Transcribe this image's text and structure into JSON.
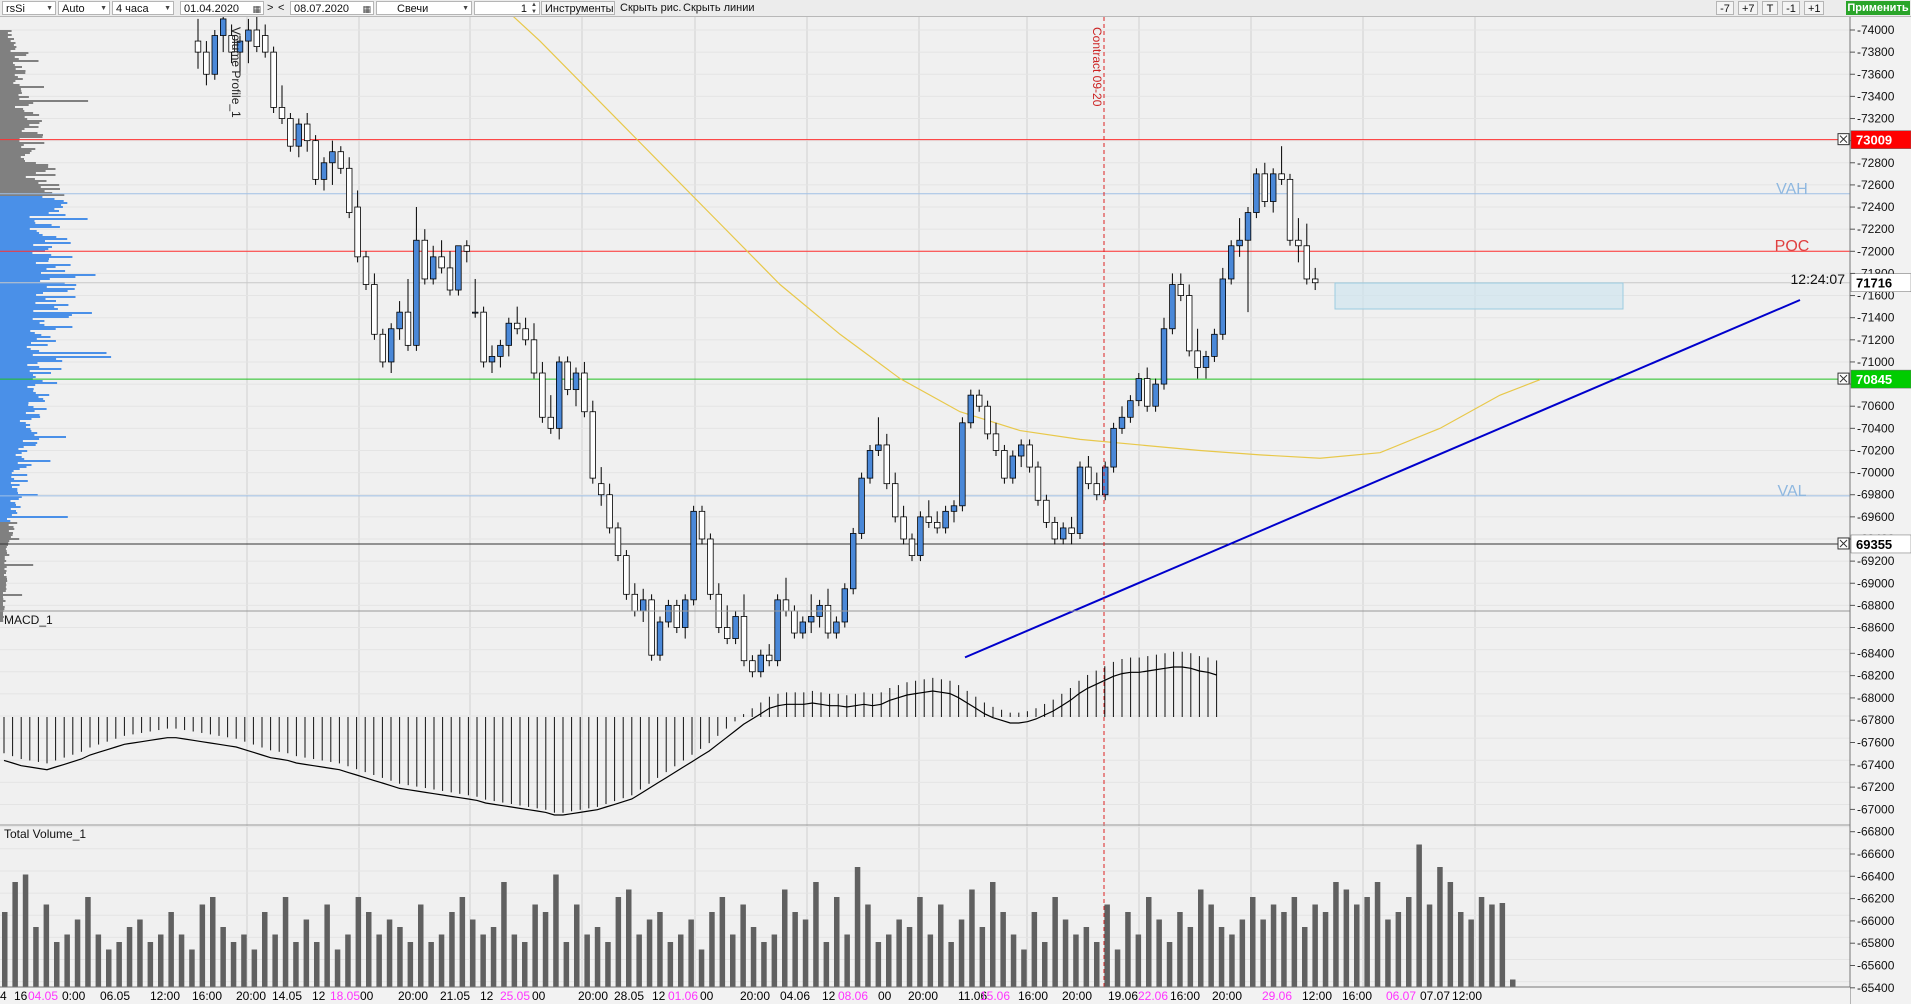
{
  "toolbar": {
    "symbol": "rsSi",
    "scale_mode": "Auto",
    "timeframe": "4 часа",
    "date_from": "01.04.2020",
    "nav_next": ">",
    "nav_prev": "<",
    "date_to": "08.07.2020",
    "chart_type": "Свечи",
    "count": "1",
    "instruments": "Инструменты",
    "hide_drawings": "Скрыть рис.",
    "hide_lines": "Скрыть линии",
    "btn_minus7": "-7",
    "btn_plus7": "+7",
    "btn_t": "T",
    "btn_minus1": "-1",
    "btn_plus1": "+1",
    "apply": "Применить"
  },
  "panels": {
    "price_label_vp": "Volume Profile_1",
    "contract_label": "Contract 09-20",
    "macd": "MACD_1",
    "volume": "Total Volume_1"
  },
  "levels": {
    "vah": "VAH",
    "poc": "POC",
    "val": "VAL",
    "timer": "12:24:07"
  },
  "badges": [
    {
      "text": "73009",
      "color": "#ff0000",
      "price": 73009
    },
    {
      "text": "71716",
      "color": "#ffffff",
      "price": 71716
    },
    {
      "text": "70845",
      "color": "#00cc00",
      "price": 70845
    },
    {
      "text": "69355",
      "color": "#ffffff",
      "price": 69355
    }
  ],
  "price_axis": [
    "-74000",
    "-73800",
    "-73600",
    "-73400",
    "-73200",
    "-73000",
    "-72800",
    "-72600",
    "-72400",
    "-72200",
    "-72000",
    "-71800",
    "-71600",
    "-71400",
    "-71200",
    "-71000",
    "-70800",
    "-70600",
    "-70400",
    "-70200",
    "-70000",
    "-69800",
    "-69600",
    "-69400",
    "-69200",
    "-69000",
    "-68800",
    "-68600",
    "-68400",
    "-68200",
    "-68000",
    "-67800",
    "-67600",
    "-67400",
    "-67200",
    "-67000",
    "-66800",
    "-66600",
    "-66400",
    "-66200",
    "-66000",
    "-65800",
    "-65600",
    "-65400"
  ],
  "time_axis": [
    {
      "text": "4",
      "color": "#000000"
    },
    {
      "text": "16",
      "color": "#000000"
    },
    {
      "text": "04.05",
      "color": "#ff33ff"
    },
    {
      "text": "0:00",
      "color": "#000000"
    },
    {
      "text": "06.05",
      "color": "#000000"
    },
    {
      "text": "12:00",
      "color": "#000000"
    },
    {
      "text": "16:00",
      "color": "#000000"
    },
    {
      "text": "20:00",
      "color": "#000000"
    },
    {
      "text": "14.05",
      "color": "#000000"
    },
    {
      "text": "12",
      "color": "#000000"
    },
    {
      "text": "18.05",
      "color": "#ff33ff"
    },
    {
      "text": "00",
      "color": "#000000"
    },
    {
      "text": "20:00",
      "color": "#000000"
    },
    {
      "text": "21.05",
      "color": "#000000"
    },
    {
      "text": "12",
      "color": "#000000"
    },
    {
      "text": "25.05",
      "color": "#ff33ff"
    },
    {
      "text": "00",
      "color": "#000000"
    },
    {
      "text": "20:00",
      "color": "#000000"
    },
    {
      "text": "28.05",
      "color": "#000000"
    },
    {
      "text": "12",
      "color": "#000000"
    },
    {
      "text": "01.06",
      "color": "#ff33ff"
    },
    {
      "text": "00",
      "color": "#000000"
    },
    {
      "text": "20:00",
      "color": "#000000"
    },
    {
      "text": "04.06",
      "color": "#000000"
    },
    {
      "text": "12",
      "color": "#000000"
    },
    {
      "text": "08.06",
      "color": "#ff33ff"
    },
    {
      "text": "00",
      "color": "#000000"
    },
    {
      "text": "20:00",
      "color": "#000000"
    },
    {
      "text": "11.06",
      "color": "#000000"
    },
    {
      "text": "15.06",
      "color": "#ff33ff"
    },
    {
      "text": "16:00",
      "color": "#000000"
    },
    {
      "text": "20:00",
      "color": "#000000"
    },
    {
      "text": "19.06",
      "color": "#000000"
    },
    {
      "text": "22.06",
      "color": "#ff33ff"
    },
    {
      "text": "16:00",
      "color": "#000000"
    },
    {
      "text": "20:00",
      "color": "#000000"
    },
    {
      "text": "29.06",
      "color": "#ff33ff"
    },
    {
      "text": "12:00",
      "color": "#000000"
    },
    {
      "text": "16:00",
      "color": "#000000"
    },
    {
      "text": "06.07",
      "color": "#ff33ff"
    },
    {
      "text": "07.07",
      "color": "#000000"
    },
    {
      "text": "12:00",
      "color": "#000000"
    }
  ],
  "colors": {
    "bull_fill": "#4a88d8",
    "bear_fill": "#ffffff",
    "ma_line": "#e8c84a",
    "trend_line": "#0000cc",
    "profile_value_area": "#4a90e8",
    "profile_outside": "#808080",
    "volume_bar": "#606060",
    "grid": "#d0d0d0"
  },
  "chart_data": {
    "type": "candlestick",
    "instrument": "rsSi",
    "timeframe": "4 часа",
    "ylim": [
      65400,
      74100
    ],
    "levels": {
      "vah": 72520,
      "poc": 72000,
      "val": 69790,
      "red_line": 73009,
      "green_line": 70845,
      "dark_line": 69355
    },
    "candles": [
      [
        73900,
        74100,
        73650,
        73800
      ],
      [
        73800,
        73900,
        73500,
        73600
      ],
      [
        73600,
        74000,
        73550,
        73950
      ],
      [
        73950,
        74200,
        73800,
        74100
      ],
      [
        73950,
        74050,
        73700,
        73800
      ],
      [
        73800,
        73950,
        73600,
        73900
      ],
      [
        73900,
        74100,
        73700,
        74000
      ],
      [
        74000,
        74150,
        73800,
        73850
      ],
      [
        73950,
        74050,
        73750,
        73800
      ],
      [
        73800,
        73850,
        73250,
        73300
      ],
      [
        73300,
        73500,
        73150,
        73200
      ],
      [
        73200,
        73250,
        72900,
        72950
      ],
      [
        72950,
        73200,
        72850,
        73150
      ],
      [
        73150,
        73250,
        72900,
        73000
      ],
      [
        73000,
        73050,
        72600,
        72650
      ],
      [
        72650,
        72850,
        72550,
        72800
      ],
      [
        72800,
        73000,
        72600,
        72900
      ],
      [
        72900,
        72950,
        72700,
        72750
      ],
      [
        72750,
        72850,
        72300,
        72350
      ],
      [
        72400,
        72550,
        71900,
        71950
      ],
      [
        71950,
        72000,
        71650,
        71700
      ],
      [
        71700,
        71800,
        71200,
        71250
      ],
      [
        71250,
        71300,
        70950,
        71000
      ],
      [
        71000,
        71350,
        70900,
        71300
      ],
      [
        71300,
        71550,
        71200,
        71450
      ],
      [
        71450,
        71750,
        71100,
        71150
      ],
      [
        71150,
        72400,
        71100,
        72100
      ],
      [
        72100,
        72200,
        71700,
        71750
      ],
      [
        71750,
        72050,
        71700,
        71950
      ],
      [
        71950,
        72100,
        71800,
        71850
      ],
      [
        71850,
        72000,
        71600,
        71650
      ],
      [
        71650,
        72050,
        71600,
        72050
      ],
      [
        72050,
        72100,
        71900,
        72000
      ],
      [
        71450,
        71750,
        71400,
        71450
      ],
      [
        71450,
        71500,
        70950,
        71000
      ],
      [
        71000,
        71150,
        70900,
        71050
      ],
      [
        71050,
        71200,
        70950,
        71150
      ],
      [
        71150,
        71400,
        71050,
        71350
      ],
      [
        71350,
        71500,
        71250,
        71300
      ],
      [
        71300,
        71400,
        71150,
        71200
      ],
      [
        71200,
        71350,
        70850,
        70900
      ],
      [
        70900,
        71000,
        70450,
        70500
      ],
      [
        70500,
        70700,
        70350,
        70400
      ],
      [
        70400,
        71050,
        70300,
        71000
      ],
      [
        71000,
        71050,
        70700,
        70750
      ],
      [
        70750,
        70950,
        70600,
        70900
      ],
      [
        70900,
        71000,
        70500,
        70550
      ],
      [
        70550,
        70650,
        69900,
        69950
      ],
      [
        69900,
        70050,
        69700,
        69800
      ],
      [
        69800,
        69900,
        69450,
        69500
      ],
      [
        69500,
        69550,
        69200,
        69250
      ],
      [
        69250,
        69300,
        68850,
        68900
      ],
      [
        68900,
        69000,
        68700,
        68750
      ],
      [
        68750,
        68950,
        68650,
        68850
      ],
      [
        68850,
        68900,
        68300,
        68350
      ],
      [
        68350,
        68700,
        68300,
        68650
      ],
      [
        68650,
        68850,
        68600,
        68800
      ],
      [
        68800,
        68850,
        68550,
        68600
      ],
      [
        68600,
        68900,
        68500,
        68850
      ],
      [
        68850,
        69700,
        68800,
        69650
      ],
      [
        69650,
        69700,
        69350,
        69400
      ],
      [
        69400,
        69450,
        68850,
        68900
      ],
      [
        68900,
        69000,
        68550,
        68600
      ],
      [
        68600,
        68800,
        68450,
        68500
      ],
      [
        68500,
        68750,
        68450,
        68700
      ],
      [
        68700,
        68900,
        68250,
        68300
      ],
      [
        68300,
        68350,
        68150,
        68200
      ],
      [
        68200,
        68400,
        68150,
        68350
      ],
      [
        68350,
        68450,
        68250,
        68300
      ],
      [
        68300,
        68900,
        68250,
        68850
      ],
      [
        68850,
        69050,
        68700,
        68750
      ],
      [
        68750,
        68800,
        68500,
        68550
      ],
      [
        68550,
        68700,
        68500,
        68650
      ],
      [
        68650,
        68900,
        68550,
        68700
      ],
      [
        68700,
        68850,
        68600,
        68800
      ],
      [
        68800,
        68950,
        68500,
        68550
      ],
      [
        68550,
        68700,
        68500,
        68650
      ],
      [
        68650,
        69000,
        68600,
        68950
      ],
      [
        68950,
        69500,
        68900,
        69450
      ],
      [
        69450,
        70000,
        69400,
        69950
      ],
      [
        69950,
        70250,
        69900,
        70200
      ],
      [
        70200,
        70500,
        70150,
        70250
      ],
      [
        70250,
        70350,
        69850,
        69900
      ],
      [
        69900,
        70000,
        69550,
        69600
      ],
      [
        69600,
        69700,
        69350,
        69400
      ],
      [
        69400,
        69450,
        69200,
        69250
      ],
      [
        69250,
        69650,
        69200,
        69600
      ],
      [
        69600,
        69750,
        69500,
        69550
      ],
      [
        69550,
        69650,
        69450,
        69500
      ],
      [
        69500,
        69700,
        69450,
        69650
      ],
      [
        69650,
        69750,
        69550,
        69700
      ],
      [
        69700,
        70500,
        69650,
        70450
      ],
      [
        70450,
        70750,
        70400,
        70700
      ],
      [
        70700,
        70750,
        70550,
        70600
      ],
      [
        70600,
        70650,
        70300,
        70350
      ],
      [
        70350,
        70450,
        70150,
        70200
      ],
      [
        70200,
        70250,
        69900,
        69950
      ],
      [
        69950,
        70200,
        69900,
        70150
      ],
      [
        70150,
        70300,
        70050,
        70250
      ],
      [
        70250,
        70300,
        70000,
        70050
      ],
      [
        70050,
        70100,
        69700,
        69750
      ],
      [
        69750,
        69800,
        69500,
        69550
      ],
      [
        69550,
        69600,
        69350,
        69400
      ],
      [
        69400,
        69550,
        69350,
        69500
      ],
      [
        69500,
        69600,
        69350,
        69450
      ],
      [
        69450,
        70100,
        69400,
        70050
      ],
      [
        70050,
        70150,
        69850,
        69900
      ],
      [
        69900,
        70000,
        69750,
        69800
      ],
      [
        69800,
        70100,
        69750,
        70050
      ],
      [
        70050,
        70450,
        70000,
        70400
      ],
      [
        70400,
        70600,
        70350,
        70500
      ],
      [
        70500,
        70700,
        70450,
        70650
      ],
      [
        70650,
        70900,
        70600,
        70850
      ],
      [
        70850,
        70950,
        70550,
        70600
      ],
      [
        70600,
        70850,
        70550,
        70800
      ],
      [
        70800,
        71400,
        70750,
        71300
      ],
      [
        71300,
        71800,
        71250,
        71700
      ],
      [
        71700,
        71800,
        71550,
        71600
      ],
      [
        71600,
        71700,
        71050,
        71100
      ],
      [
        71100,
        71300,
        70850,
        70950
      ],
      [
        70950,
        71100,
        70850,
        71050
      ],
      [
        71050,
        71300,
        71000,
        71250
      ],
      [
        71250,
        71850,
        71200,
        71750
      ],
      [
        71750,
        72100,
        71700,
        72050
      ],
      [
        72050,
        72300,
        71950,
        72100
      ],
      [
        72100,
        72400,
        71450,
        72350
      ],
      [
        72350,
        72750,
        72300,
        72700
      ],
      [
        72700,
        72800,
        72400,
        72450
      ],
      [
        72450,
        72750,
        72350,
        72700
      ],
      [
        72700,
        72950,
        72600,
        72650
      ],
      [
        72650,
        72700,
        72050,
        72100
      ],
      [
        72100,
        72300,
        71900,
        72050
      ],
      [
        72050,
        72250,
        71700,
        71750
      ],
      [
        71750,
        71850,
        71650,
        71716
      ]
    ],
    "moving_average": [
      [
        0,
        74400
      ],
      [
        60,
        73900
      ],
      [
        120,
        73350
      ],
      [
        180,
        72800
      ],
      [
        240,
        72250
      ],
      [
        300,
        71700
      ],
      [
        360,
        71250
      ],
      [
        420,
        70850
      ],
      [
        480,
        70550
      ],
      [
        540,
        70380
      ],
      [
        600,
        70300
      ],
      [
        660,
        70250
      ],
      [
        720,
        70200
      ],
      [
        780,
        70160
      ],
      [
        840,
        70130
      ],
      [
        900,
        70180
      ],
      [
        960,
        70400
      ],
      [
        1020,
        70700
      ],
      [
        1060,
        70840
      ]
    ],
    "trend_line": {
      "x1": 965,
      "y1": 68330,
      "x2": 1800,
      "y2": 71560
    },
    "macd_hist": [
      -0.25,
      -0.27,
      -0.29,
      -0.3,
      -0.31,
      -0.32,
      -0.3,
      -0.28,
      -0.26,
      -0.24,
      -0.21,
      -0.19,
      -0.17,
      -0.15,
      -0.13,
      -0.12,
      -0.11,
      -0.1,
      -0.09,
      -0.08,
      -0.08,
      -0.09,
      -0.1,
      -0.11,
      -0.12,
      -0.13,
      -0.14,
      -0.15,
      -0.17,
      -0.19,
      -0.21,
      -0.23,
      -0.24,
      -0.25,
      -0.27,
      -0.28,
      -0.29,
      -0.3,
      -0.31,
      -0.32,
      -0.34,
      -0.36,
      -0.38,
      -0.4,
      -0.42,
      -0.44,
      -0.46,
      -0.47,
      -0.48,
      -0.49,
      -0.5,
      -0.51,
      -0.52,
      -0.53,
      -0.54,
      -0.55,
      -0.57,
      -0.58,
      -0.59,
      -0.6,
      -0.61,
      -0.62,
      -0.63,
      -0.64,
      -0.66,
      -0.66,
      -0.65,
      -0.64,
      -0.63,
      -0.62,
      -0.6,
      -0.58,
      -0.56,
      -0.54,
      -0.5,
      -0.46,
      -0.42,
      -0.38,
      -0.34,
      -0.3,
      -0.26,
      -0.22,
      -0.18,
      -0.13,
      -0.08,
      -0.03,
      0.02,
      0.06,
      0.1,
      0.14,
      0.16,
      0.17,
      0.17,
      0.17,
      0.18,
      0.17,
      0.16,
      0.16,
      0.15,
      0.16,
      0.17,
      0.16,
      0.17,
      0.2,
      0.22,
      0.24,
      0.25,
      0.26,
      0.27,
      0.26,
      0.25,
      0.22,
      0.18,
      0.14,
      0.1,
      0.07,
      0.05,
      0.03,
      0.03,
      0.04,
      0.06,
      0.09,
      0.12,
      0.16,
      0.2,
      0.25,
      0.29,
      0.32,
      0.35,
      0.38,
      0.4,
      0.41,
      0.41,
      0.42,
      0.43,
      0.44,
      0.45,
      0.45,
      0.44,
      0.42,
      0.41,
      0.39
    ],
    "volumes": [
      0.5,
      0.7,
      0.75,
      0.4,
      0.55,
      0.3,
      0.35,
      0.45,
      0.6,
      0.35,
      0.25,
      0.3,
      0.4,
      0.45,
      0.3,
      0.35,
      0.5,
      0.35,
      0.25,
      0.55,
      0.6,
      0.4,
      0.3,
      0.35,
      0.25,
      0.5,
      0.35,
      0.6,
      0.3,
      0.45,
      0.3,
      0.55,
      0.25,
      0.35,
      0.6,
      0.5,
      0.35,
      0.45,
      0.4,
      0.3,
      0.55,
      0.3,
      0.35,
      0.5,
      0.6,
      0.45,
      0.35,
      0.4,
      0.7,
      0.35,
      0.3,
      0.55,
      0.5,
      0.75,
      0.3,
      0.55,
      0.35,
      0.4,
      0.3,
      0.6,
      0.65,
      0.35,
      0.45,
      0.5,
      0.3,
      0.35,
      0.45,
      0.25,
      0.5,
      0.6,
      0.35,
      0.55,
      0.4,
      0.3,
      0.35,
      0.65,
      0.5,
      0.45,
      0.7,
      0.3,
      0.6,
      0.35,
      0.8,
      0.55,
      0.3,
      0.35,
      0.45,
      0.4,
      0.6,
      0.35,
      0.55,
      0.3,
      0.45,
      0.65,
      0.4,
      0.7,
      0.5,
      0.35,
      0.25,
      0.5,
      0.3,
      0.6,
      0.45,
      0.35,
      0.4,
      0.3,
      0.55,
      0.25,
      0.5,
      0.35,
      0.6,
      0.45,
      0.3,
      0.5,
      0.4,
      0.65,
      0.55,
      0.4,
      0.35,
      0.45,
      0.6,
      0.45,
      0.55,
      0.5,
      0.6,
      0.4,
      0.55,
      0.5,
      0.7,
      0.65,
      0.55,
      0.6,
      0.7,
      0.45,
      0.5,
      0.6,
      0.95,
      0.55,
      0.8,
      0.7,
      0.5,
      0.45,
      0.6,
      0.55,
      0.56,
      0.05
    ]
  }
}
